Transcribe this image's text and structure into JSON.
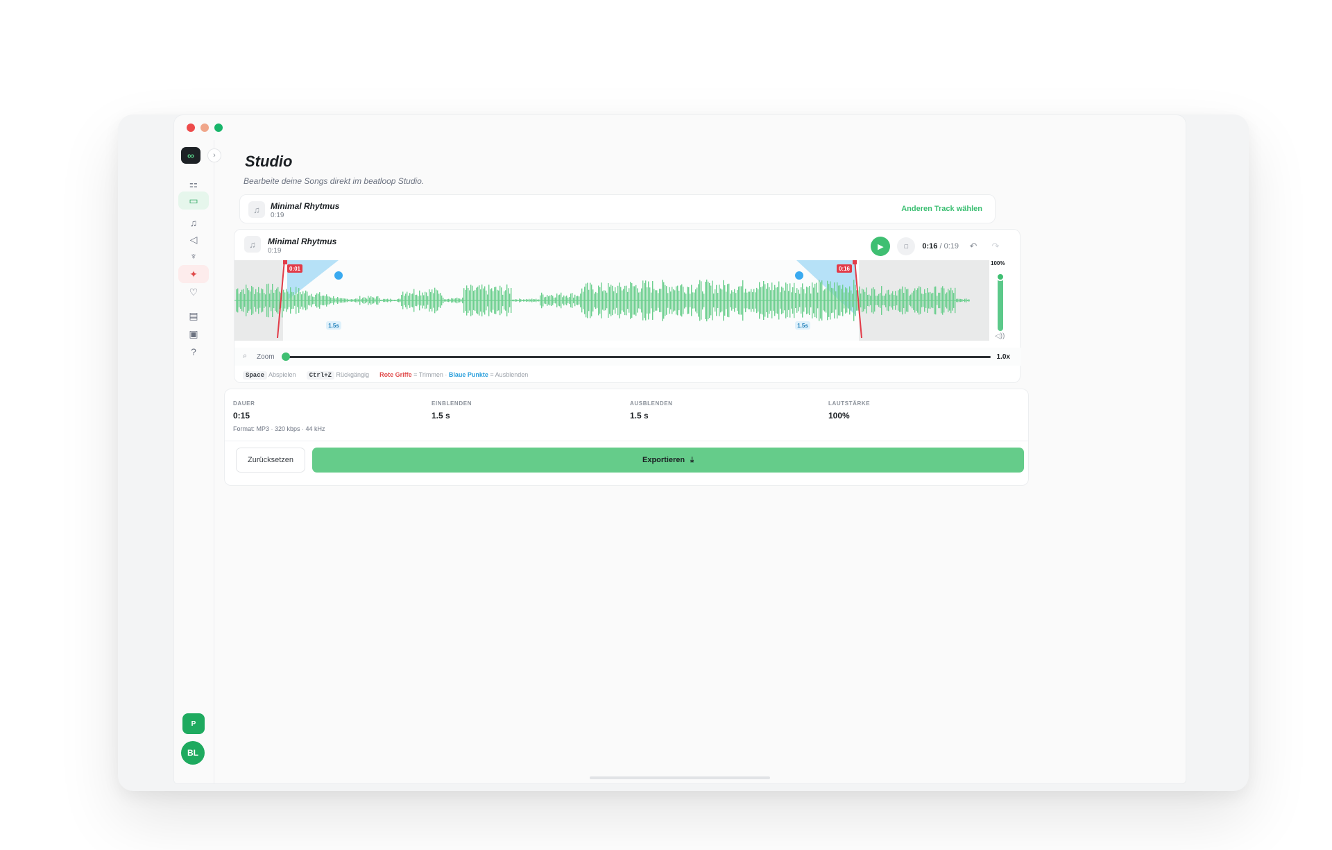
{
  "window": {
    "traffic_lights": [
      "close",
      "minimize",
      "maximize"
    ]
  },
  "sidebar": {
    "logo": "∞",
    "collapse_icon": "›",
    "items": [
      {
        "name": "dashboard",
        "icon": "grid-icon",
        "glyph": "⚏",
        "active": false
      },
      {
        "name": "studio",
        "icon": "monitor-icon",
        "glyph": "▭",
        "active": true
      },
      {
        "name": "music",
        "icon": "music-note-icon",
        "glyph": "♫",
        "active": false
      },
      {
        "name": "sound",
        "icon": "speaker-icon",
        "glyph": "◁",
        "active": false
      },
      {
        "name": "microphone",
        "icon": "mic-icon",
        "glyph": "♆",
        "active": false
      },
      {
        "name": "magic",
        "icon": "sparkle-icon",
        "glyph": "✦",
        "active": false,
        "highlight": true
      },
      {
        "name": "favorites",
        "icon": "heart-icon",
        "glyph": "♡",
        "active": false
      },
      {
        "name": "documents",
        "icon": "document-icon",
        "glyph": "▤",
        "active": false
      },
      {
        "name": "media",
        "icon": "image-icon",
        "glyph": "▣",
        "active": false
      },
      {
        "name": "help",
        "icon": "help-icon",
        "glyph": "?",
        "active": false
      }
    ],
    "plan_badge": "P",
    "avatar_initials": "BL"
  },
  "header": {
    "title": "Studio",
    "subtitle": "Bearbeite deine Songs direkt im beatloop Studio."
  },
  "selected_track": {
    "name": "Minimal Rhytmus",
    "duration": "0:19",
    "change_label": "Anderen Track wählen"
  },
  "editor": {
    "track_name": "Minimal Rhytmus",
    "track_duration": "0:19",
    "current_time": "0:16",
    "total_time": "/ 0:19",
    "trim_start_label": "0:01",
    "trim_end_label": "0:16",
    "fade_in_label": "1.5s",
    "fade_out_label": "1.5s",
    "volume_label": "100%",
    "zoom_label": "Zoom",
    "zoom_value": "1.0x",
    "wave_color": "#6dcf8f",
    "trim_color": "#e23b48",
    "fade_color": "#a9dcf6"
  },
  "hints": {
    "space_key": "Space",
    "space_action": "Abspielen",
    "undo_key": "Ctrl+Z",
    "undo_action": "Rückgängig",
    "red_handles": "Rote Griffe",
    "trim_text": "= Trimmen ·",
    "blue_points": "Blaue Punkte",
    "fade_text": "= Ausblenden"
  },
  "stats": {
    "duration_label": "DAUER",
    "duration_value": "0:15",
    "fadein_label": "EINBLENDEN",
    "fadein_value": "1.5 s",
    "fadeout_label": "AUSBLENDEN",
    "fadeout_value": "1.5 s",
    "volume_label": "LAUTSTÄRKE",
    "volume_value": "100%",
    "format": "Format: MP3 · 320 kbps · 44 kHz"
  },
  "actions": {
    "reset": "Zurücksetzen",
    "export": "Exportieren"
  }
}
